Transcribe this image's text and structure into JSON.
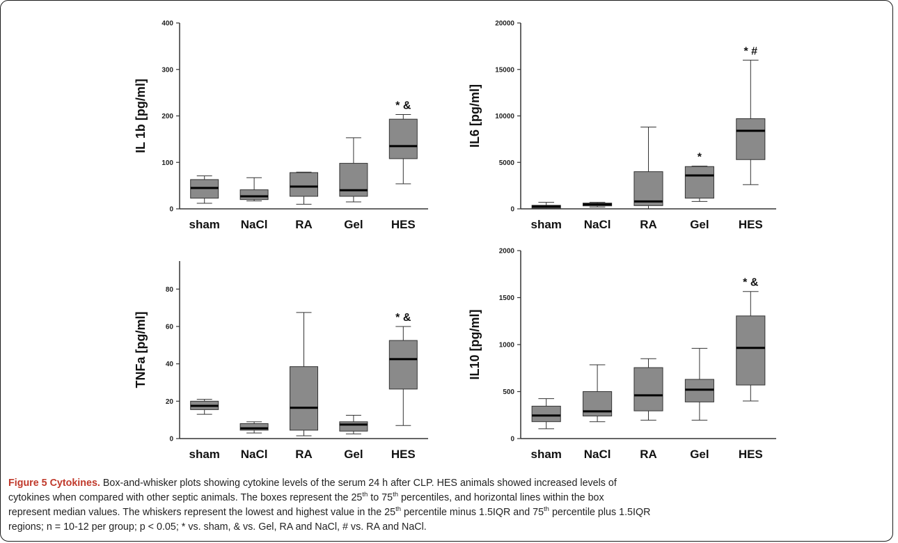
{
  "chart_data": [
    {
      "type": "box",
      "ylabel": "IL 1b [pg/ml]",
      "ylim": [
        0,
        400
      ],
      "yticks": [
        0,
        100,
        200,
        300,
        400
      ],
      "categories": [
        "sham",
        "NaCl",
        "RA",
        "Gel",
        "HES"
      ],
      "boxes": [
        {
          "min": 12,
          "q1": 23,
          "median": 45,
          "q3": 63,
          "max": 71
        },
        {
          "min": 17,
          "q1": 20,
          "median": 27,
          "q3": 41,
          "max": 67
        },
        {
          "min": 10,
          "q1": 27,
          "median": 48,
          "q3": 78,
          "max": 79
        },
        {
          "min": 15,
          "q1": 27,
          "median": 40,
          "q3": 98,
          "max": 153
        },
        {
          "min": 54,
          "q1": 108,
          "median": 135,
          "q3": 193,
          "max": 203
        }
      ],
      "annotations": [
        {
          "category": "HES",
          "text": "* &"
        }
      ]
    },
    {
      "type": "box",
      "ylabel": "IL6 [pg/ml]",
      "ylim": [
        0,
        20000
      ],
      "yticks": [
        0,
        5000,
        10000,
        15000,
        20000
      ],
      "categories": [
        "sham",
        "NaCl",
        "RA",
        "Gel",
        "HES"
      ],
      "boxes": [
        {
          "min": 0,
          "q1": 80,
          "median": 250,
          "q3": 380,
          "max": 700
        },
        {
          "min": 200,
          "q1": 320,
          "median": 480,
          "q3": 620,
          "max": 700
        },
        {
          "min": 0,
          "q1": 350,
          "median": 800,
          "q3": 4000,
          "max": 8800
        },
        {
          "min": 800,
          "q1": 1150,
          "median": 3600,
          "q3": 4550,
          "max": 4600
        },
        {
          "min": 2600,
          "q1": 5300,
          "median": 8400,
          "q3": 9700,
          "max": 16000
        }
      ],
      "annotations": [
        {
          "category": "Gel",
          "text": "*"
        },
        {
          "category": "HES",
          "text": "* #"
        }
      ]
    },
    {
      "type": "box",
      "ylabel": "TNFa [pg/ml]",
      "ylim": [
        0,
        95
      ],
      "yticks": [
        0,
        20,
        40,
        60,
        80
      ],
      "categories": [
        "sham",
        "NaCl",
        "RA",
        "Gel",
        "HES"
      ],
      "boxes": [
        {
          "min": 13,
          "q1": 15.5,
          "median": 17.5,
          "q3": 20,
          "max": 21
        },
        {
          "min": 3,
          "q1": 4.5,
          "median": 5.5,
          "q3": 8,
          "max": 9
        },
        {
          "min": 1.5,
          "q1": 4.5,
          "median": 16.5,
          "q3": 38.5,
          "max": 67.5
        },
        {
          "min": 2.5,
          "q1": 4,
          "median": 7.5,
          "q3": 9,
          "max": 12.5
        },
        {
          "min": 7,
          "q1": 26.5,
          "median": 42.5,
          "q3": 52.5,
          "max": 60
        }
      ],
      "annotations": [
        {
          "category": "HES",
          "text": "* &"
        }
      ]
    },
    {
      "type": "box",
      "ylabel": "IL10 [pg/ml]",
      "ylim": [
        0,
        2000
      ],
      "yticks": [
        0,
        500,
        1000,
        1500,
        2000
      ],
      "categories": [
        "sham",
        "NaCl",
        "RA",
        "Gel",
        "HES"
      ],
      "boxes": [
        {
          "min": 105,
          "q1": 180,
          "median": 245,
          "q3": 345,
          "max": 425
        },
        {
          "min": 180,
          "q1": 240,
          "median": 290,
          "q3": 500,
          "max": 785
        },
        {
          "min": 195,
          "q1": 295,
          "median": 460,
          "q3": 755,
          "max": 850
        },
        {
          "min": 195,
          "q1": 390,
          "median": 520,
          "q3": 630,
          "max": 960
        },
        {
          "min": 400,
          "q1": 570,
          "median": 965,
          "q3": 1305,
          "max": 1565
        }
      ],
      "annotations": [
        {
          "category": "HES",
          "text": "* &"
        }
      ]
    }
  ],
  "colors": {
    "box_fill": "#8a8a8a",
    "median": "#000000",
    "axis": "#333333",
    "caption_label": "#c0392b"
  },
  "caption": {
    "label": "Figure 5 Cytokines.",
    "line1": " Box-and-whisker plots showing cytokine levels of the serum 24 h after CLP. HES animals showed increased levels of",
    "line2": "cytokines when compared with other septic animals. The boxes represent the 25",
    "line2_sup1": "th",
    "line2_mid": " to 75",
    "line2_sup2": "th",
    "line2_end": " percentiles, and horizontal lines within the box",
    "line3": "represent median values. The whiskers represent the lowest and highest value in the 25",
    "line3_sup1": "th",
    "line3_mid": " percentile minus 1.5IQR and 75",
    "line3_sup2": "th",
    "line3_end": " percentile plus 1.5IQR",
    "line4": "regions; n = 10-12 per group; p < 0.05; * vs. sham, & vs. Gel, RA and NaCl, # vs. RA and NaCl."
  }
}
